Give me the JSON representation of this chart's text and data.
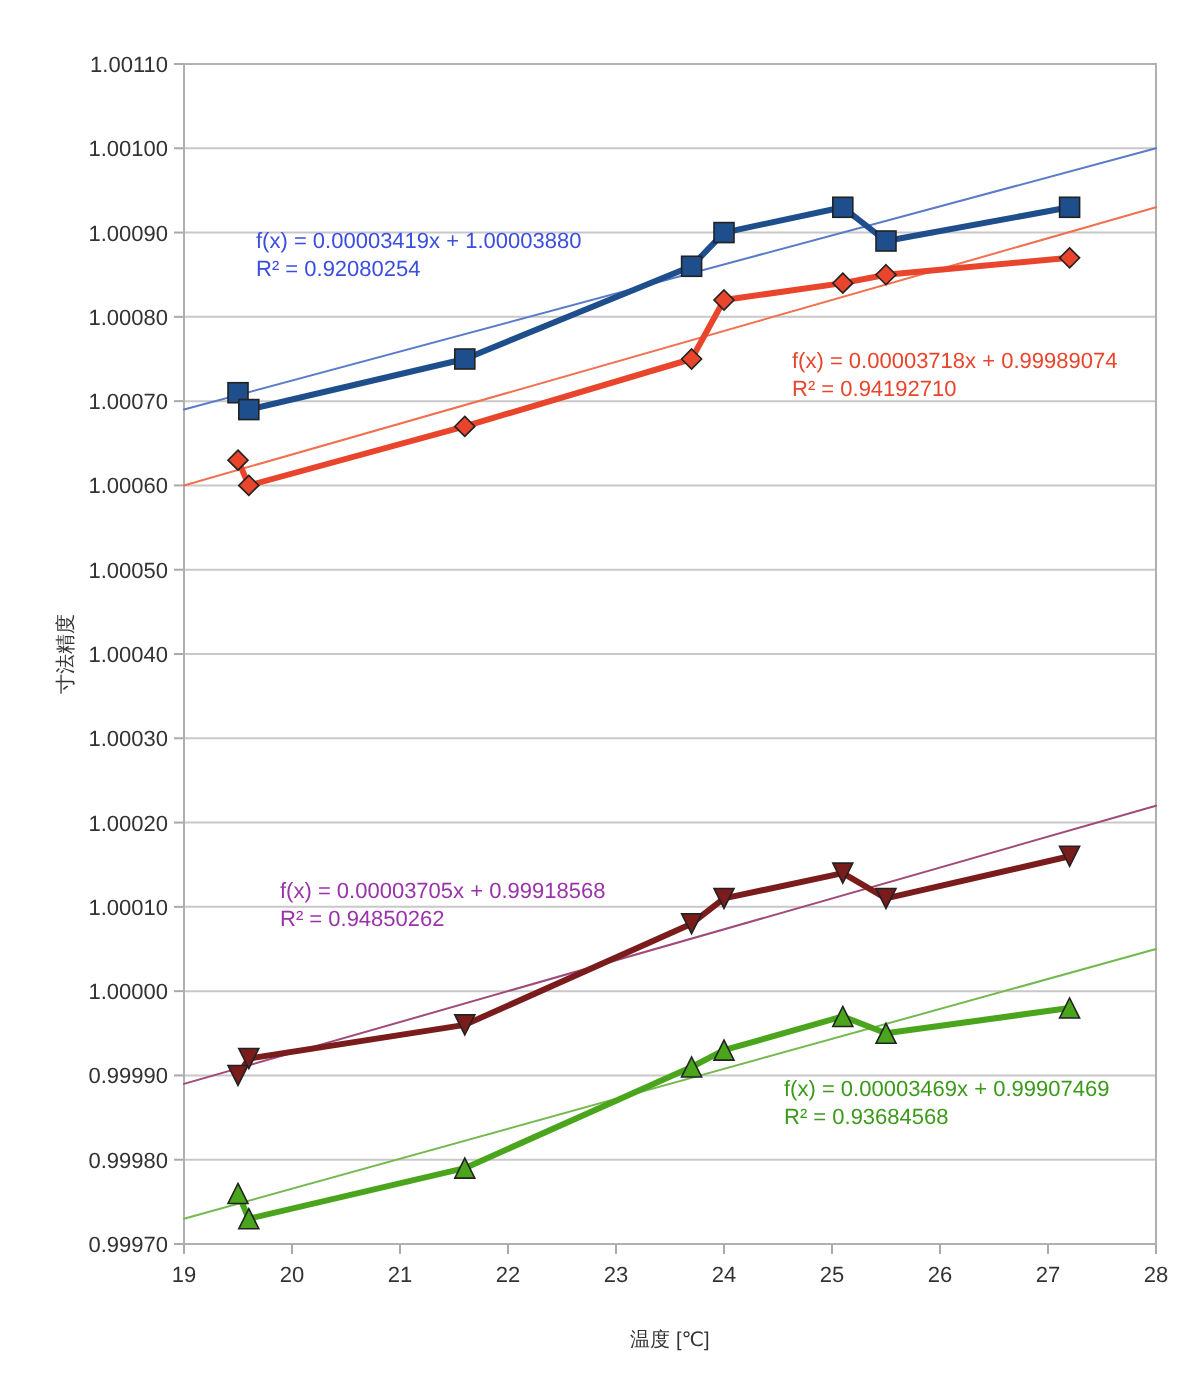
{
  "chart_data": {
    "type": "line",
    "xlabel": "温度 [℃]",
    "ylabel": "寸法精度",
    "grid": "y",
    "xlim": [
      19,
      28
    ],
    "xticks": [
      19,
      20,
      21,
      22,
      23,
      24,
      25,
      26,
      27,
      28
    ],
    "ylim": [
      0.9997,
      1.0011
    ],
    "yticks": [
      {
        "value": 0.9997,
        "label": "0.99970"
      },
      {
        "value": 0.9998,
        "label": "0.99980"
      },
      {
        "value": 0.9999,
        "label": "0.99990"
      },
      {
        "value": 1.0,
        "label": "1.00000"
      },
      {
        "value": 1.0001,
        "label": "1.00010"
      },
      {
        "value": 1.0002,
        "label": "1.00020"
      },
      {
        "value": 1.0003,
        "label": "1.00030"
      },
      {
        "value": 1.0004,
        "label": "1.00040"
      },
      {
        "value": 1.0005,
        "label": "1.00050"
      },
      {
        "value": 1.0006,
        "label": "1.00060"
      },
      {
        "value": 1.0007,
        "label": "1.00070"
      },
      {
        "value": 1.0008,
        "label": "1.00080"
      },
      {
        "value": 1.0009,
        "label": "1.00090"
      },
      {
        "value": 1.001,
        "label": "1.00100"
      },
      {
        "value": 1.0011,
        "label": "1.00110"
      }
    ],
    "series": [
      {
        "marker": "none",
        "color": "#5a7cc8",
        "x": [
          19,
          28
        ],
        "values": [
          1.00069,
          1.001
        ]
      },
      {
        "marker": "none",
        "color": "#f07050",
        "x": [
          19,
          28
        ],
        "values": [
          1.0006,
          1.00093
        ]
      },
      {
        "marker": "none",
        "color": "#a04a7a",
        "x": [
          19,
          28
        ],
        "values": [
          0.99989,
          1.00022
        ]
      },
      {
        "marker": "none",
        "color": "#74b850",
        "x": [
          19,
          28
        ],
        "values": [
          0.99973,
          1.00005
        ]
      },
      {
        "marker": "square",
        "color": "#1f4e8c",
        "x": [
          19.5,
          19.6,
          21.6,
          23.7,
          24,
          25.1,
          25.5,
          27.2
        ],
        "values": [
          1.00071,
          1.00069,
          1.00075,
          1.00086,
          1.0009,
          1.00093,
          1.00089,
          1.00093
        ]
      },
      {
        "marker": "diamond",
        "color": "#e8452c",
        "x": [
          19.5,
          19.6,
          21.6,
          23.7,
          24,
          25.1,
          25.5,
          27.2
        ],
        "values": [
          1.00063,
          1.0006,
          1.00067,
          1.00075,
          1.00082,
          1.00084,
          1.00085,
          1.00087
        ]
      },
      {
        "marker": "triangle-down",
        "color": "#7b1c1c",
        "x": [
          19.5,
          19.6,
          21.6,
          23.7,
          24,
          25.1,
          25.5,
          27.2
        ],
        "values": [
          0.9999,
          0.99992,
          0.99996,
          1.00008,
          1.00011,
          1.00014,
          1.00011,
          1.00016
        ]
      },
      {
        "marker": "triangle",
        "color": "#4aa51c",
        "x": [
          19.5,
          19.6,
          21.6,
          23.7,
          24,
          25.1,
          25.5,
          27.2
        ],
        "values": [
          0.99976,
          0.99973,
          0.99979,
          0.99991,
          0.99993,
          0.99997,
          0.99995,
          0.99998
        ]
      }
    ],
    "annotations": [
      "f(x) = 0.00003419x + 1.00003880",
      "R² = 0.92080254",
      "f(x) = 0.00003718x + 0.99989074",
      "R² = 0.94192710",
      "f(x) = 0.00003705x + 0.99918568",
      "R² = 0.94850262",
      "f(x) = 0.00003469x + 0.99907469",
      "R² = 0.93684568"
    ]
  }
}
